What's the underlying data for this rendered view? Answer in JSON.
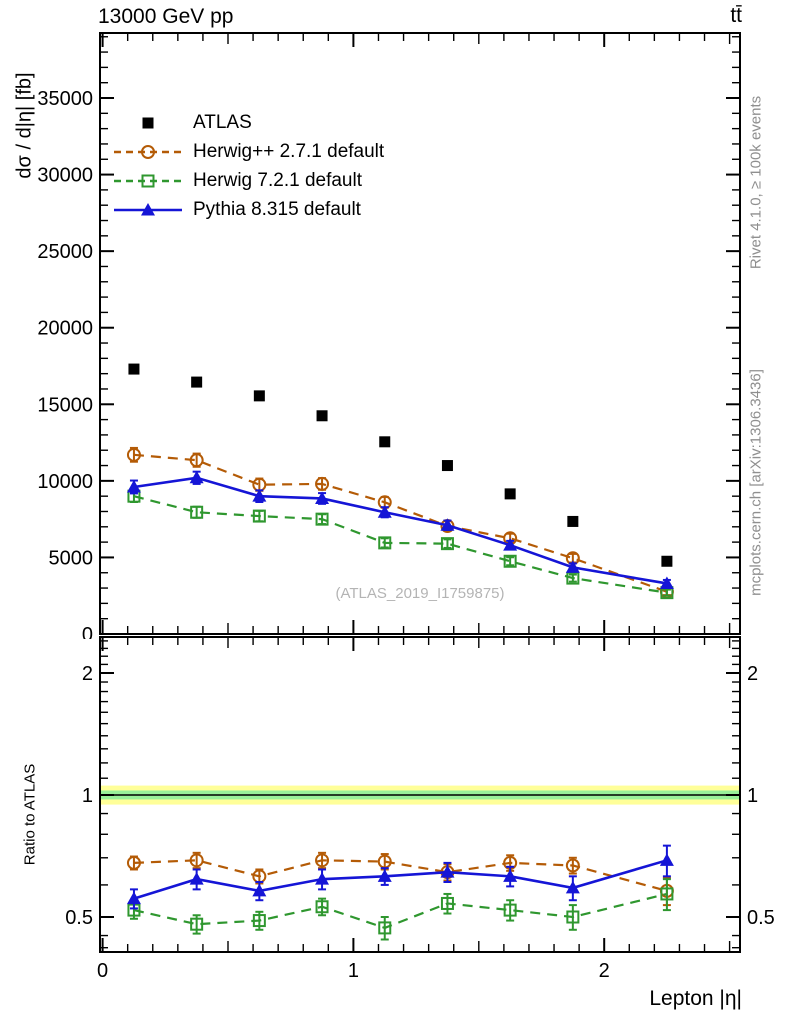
{
  "header": {
    "title": "13000 GeV pp",
    "process": "tt̄"
  },
  "side_notes": {
    "rivet": "Rivet 4.1.0, ≥ 100k events",
    "mcplots": "mcplots.cern.ch [arXiv:1306.3436]"
  },
  "watermark": "(ATLAS_2019_I1759875)",
  "colors": {
    "atlas": "#000000",
    "herwigpp": "#b45b06",
    "herwig7": "#2f972f",
    "pythia": "#1515d6",
    "band_outer": "#ffff99",
    "band_inner": "#99f099"
  },
  "chart_data": [
    {
      "type": "scatter-line",
      "panel": "main",
      "title": "13000 GeV pp",
      "process": "tt̄",
      "xlabel": "Lepton |η|",
      "ylabel": "dσ / d|η| [fb]",
      "xlim": [
        0,
        2.54
      ],
      "ylim": [
        0,
        39200
      ],
      "grid": false,
      "legend_position": "top-left",
      "x": [
        0.125,
        0.375,
        0.625,
        0.875,
        1.125,
        1.375,
        1.625,
        1.875,
        2.25
      ],
      "bin_edges": [
        0,
        0.25,
        0.5,
        0.75,
        1.0,
        1.25,
        1.5,
        1.75,
        2.0,
        2.5
      ],
      "xticks": [
        0,
        1,
        2
      ],
      "yticks": [
        0,
        5000,
        10000,
        15000,
        20000,
        25000,
        30000,
        35000
      ],
      "series": [
        {
          "name": "ATLAS",
          "marker": "filled-square",
          "line": "none",
          "color": "#000000",
          "values": [
            17300,
            16450,
            15550,
            14250,
            12550,
            11000,
            9150,
            7350,
            4750
          ]
        },
        {
          "name": "Herwig++ 2.7.1 default",
          "marker": "open-circle",
          "line": "dashed",
          "color": "#b45b06",
          "values": [
            11700,
            11350,
            9750,
            9800,
            8600,
            7050,
            6250,
            4950,
            2760
          ],
          "errors": [
            450,
            430,
            400,
            380,
            350,
            320,
            300,
            280,
            220
          ]
        },
        {
          "name": "Herwig 7.2.1 default",
          "marker": "open-square",
          "line": "dashed",
          "color": "#2f972f",
          "values": [
            9000,
            7950,
            7700,
            7500,
            5950,
            5900,
            4750,
            3650,
            2700
          ],
          "errors": [
            380,
            360,
            340,
            320,
            300,
            280,
            260,
            230,
            200
          ]
        },
        {
          "name": "Pythia 8.315 default",
          "marker": "filled-triangle",
          "line": "solid",
          "color": "#1515d6",
          "values": [
            9600,
            10200,
            9000,
            8850,
            7950,
            7100,
            5800,
            4350,
            3300
          ],
          "errors": [
            420,
            400,
            380,
            350,
            330,
            310,
            280,
            260,
            230
          ]
        }
      ]
    },
    {
      "type": "ratio",
      "panel": "ratio",
      "ylabel": "Ratio to ATLAS",
      "yscale": "log",
      "ylim": [
        0.41,
        2.45
      ],
      "yticks": [
        0.5,
        1,
        2
      ],
      "xticks": [
        0,
        1,
        2
      ],
      "x": [
        0.125,
        0.375,
        0.625,
        0.875,
        1.125,
        1.375,
        1.625,
        1.875,
        2.25
      ],
      "band": {
        "center": 1,
        "outer": [
          0.947,
          1.055
        ],
        "inner": [
          0.975,
          1.026
        ],
        "outer_color": "#ffff99",
        "inner_color": "#99f099"
      },
      "series": [
        {
          "name": "Herwig++ 2.7.1 default",
          "marker": "open-circle",
          "line": "dashed",
          "color": "#b45b06",
          "values": [
            0.68,
            0.69,
            0.63,
            0.69,
            0.685,
            0.645,
            0.68,
            0.67,
            0.58
          ],
          "errors": [
            0.025,
            0.03,
            0.025,
            0.03,
            0.03,
            0.03,
            0.03,
            0.03,
            0.045
          ]
        },
        {
          "name": "Herwig 7.2.1 default",
          "marker": "open-square",
          "line": "dashed",
          "color": "#2f972f",
          "values": [
            0.52,
            0.48,
            0.49,
            0.53,
            0.47,
            0.54,
            0.52,
            0.5,
            0.57
          ],
          "errors": [
            0.025,
            0.025,
            0.025,
            0.025,
            0.03,
            0.03,
            0.03,
            0.035,
            0.05
          ]
        },
        {
          "name": "Pythia 8.315 default",
          "marker": "filled-triangle",
          "line": "solid",
          "color": "#1515d6",
          "values": [
            0.555,
            0.62,
            0.58,
            0.62,
            0.63,
            0.645,
            0.63,
            0.59,
            0.69
          ],
          "errors": [
            0.03,
            0.035,
            0.03,
            0.035,
            0.03,
            0.035,
            0.035,
            0.04,
            0.06
          ]
        }
      ]
    }
  ]
}
